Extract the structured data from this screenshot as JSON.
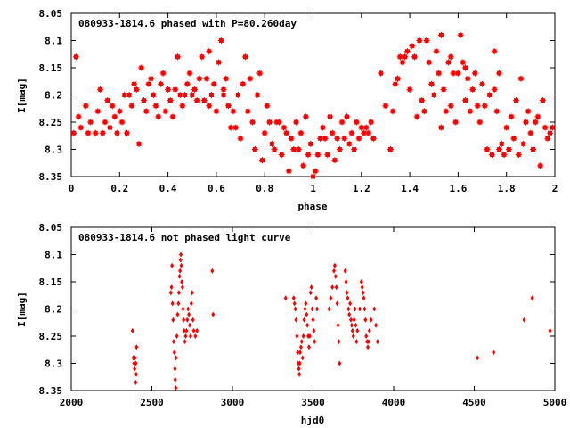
{
  "chart_data": [
    {
      "type": "scatter",
      "title": "080933-1814.6 phased with P=80.260day",
      "xlabel": "phase",
      "ylabel": "I[mag]",
      "xlim": [
        0,
        2
      ],
      "ylim": [
        8.05,
        8.35
      ],
      "y_inverted": true,
      "grid": false,
      "xticks": [
        "0",
        "0.2",
        "0.4",
        "0.6",
        "0.8",
        "1",
        "1.2",
        "1.4",
        "1.6",
        "1.8",
        "2"
      ],
      "yticks": [
        "8.05",
        "8.1",
        "8.15",
        "8.2",
        "8.25",
        "8.3",
        "8.35"
      ],
      "marker_color": "#ff0000",
      "marker": "plus-square",
      "points": [
        [
          0.01,
          8.27
        ],
        [
          0.02,
          8.13
        ],
        [
          0.03,
          8.24
        ],
        [
          0.04,
          8.26
        ],
        [
          0.06,
          8.22
        ],
        [
          0.07,
          8.27
        ],
        [
          0.08,
          8.25
        ],
        [
          0.1,
          8.27
        ],
        [
          0.11,
          8.23
        ],
        [
          0.12,
          8.19
        ],
        [
          0.13,
          8.27
        ],
        [
          0.14,
          8.25
        ],
        [
          0.15,
          8.21
        ],
        [
          0.16,
          8.26
        ],
        [
          0.17,
          8.22
        ],
        [
          0.18,
          8.24
        ],
        [
          0.19,
          8.27
        ],
        [
          0.2,
          8.23
        ],
        [
          0.21,
          8.25
        ],
        [
          0.22,
          8.2
        ],
        [
          0.23,
          8.27
        ],
        [
          0.24,
          8.2
        ],
        [
          0.25,
          8.22
        ],
        [
          0.26,
          8.18
        ],
        [
          0.27,
          8.19
        ],
        [
          0.28,
          8.29
        ],
        [
          0.29,
          8.15
        ],
        [
          0.3,
          8.21
        ],
        [
          0.31,
          8.23
        ],
        [
          0.32,
          8.18
        ],
        [
          0.33,
          8.17
        ],
        [
          0.34,
          8.2
        ],
        [
          0.35,
          8.22
        ],
        [
          0.36,
          8.24
        ],
        [
          0.37,
          8.18
        ],
        [
          0.38,
          8.16
        ],
        [
          0.39,
          8.23
        ],
        [
          0.4,
          8.19
        ],
        [
          0.41,
          8.21
        ],
        [
          0.42,
          8.24
        ],
        [
          0.43,
          8.19
        ],
        [
          0.44,
          8.13
        ],
        [
          0.45,
          8.2
        ],
        [
          0.46,
          8.22
        ],
        [
          0.47,
          8.2
        ],
        [
          0.48,
          8.18
        ],
        [
          0.49,
          8.16
        ],
        [
          0.5,
          8.2
        ],
        [
          0.51,
          8.19
        ],
        [
          0.52,
          8.21
        ],
        [
          0.53,
          8.17
        ],
        [
          0.54,
          8.13
        ],
        [
          0.55,
          8.21
        ],
        [
          0.56,
          8.17
        ],
        [
          0.57,
          8.22
        ],
        [
          0.58,
          8.2
        ],
        [
          0.59,
          8.18
        ],
        [
          0.6,
          8.23
        ],
        [
          0.61,
          8.14
        ],
        [
          0.62,
          8.1
        ],
        [
          0.63,
          8.19
        ],
        [
          0.64,
          8.17
        ],
        [
          0.65,
          8.22
        ],
        [
          0.66,
          8.26
        ],
        [
          0.67,
          8.23
        ],
        [
          0.68,
          8.26
        ],
        [
          0.69,
          8.2
        ],
        [
          0.7,
          8.28
        ],
        [
          0.71,
          8.18
        ],
        [
          0.72,
          8.13
        ],
        [
          0.73,
          8.23
        ],
        [
          0.74,
          8.17
        ],
        [
          0.75,
          8.25
        ],
        [
          0.76,
          8.3
        ],
        [
          0.77,
          8.2
        ],
        [
          0.78,
          8.16
        ],
        [
          0.79,
          8.32
        ],
        [
          0.8,
          8.27
        ],
        [
          0.81,
          8.22
        ],
        [
          0.82,
          8.25
        ],
        [
          0.83,
          8.29
        ],
        [
          0.84,
          8.3
        ],
        [
          0.85,
          8.25
        ],
        [
          0.86,
          8.25
        ],
        [
          0.87,
          8.31
        ],
        [
          0.88,
          8.26
        ],
        [
          0.89,
          8.27
        ],
        [
          0.9,
          8.34
        ],
        [
          0.91,
          8.28
        ],
        [
          0.92,
          8.3
        ],
        [
          0.93,
          8.25
        ],
        [
          0.94,
          8.3
        ],
        [
          0.95,
          8.27
        ],
        [
          0.96,
          8.33
        ],
        [
          0.97,
          8.24
        ],
        [
          0.98,
          8.31
        ],
        [
          0.99,
          8.29
        ],
        [
          1.0,
          8.35
        ],
        [
          1.01,
          8.34
        ],
        [
          1.02,
          8.31
        ],
        [
          1.03,
          8.28
        ],
        [
          1.04,
          8.26
        ],
        [
          1.05,
          8.28
        ],
        [
          1.06,
          8.31
        ],
        [
          1.07,
          8.24
        ],
        [
          1.08,
          8.27
        ],
        [
          1.09,
          8.32
        ],
        [
          1.1,
          8.28
        ],
        [
          1.11,
          8.3
        ],
        [
          1.12,
          8.25
        ],
        [
          1.13,
          8.28
        ],
        [
          1.14,
          8.24
        ],
        [
          1.15,
          8.29
        ],
        [
          1.16,
          8.27
        ],
        [
          1.17,
          8.3
        ],
        [
          1.18,
          8.25
        ],
        [
          1.19,
          8.28
        ],
        [
          1.2,
          8.26
        ],
        [
          1.21,
          8.27
        ],
        [
          1.22,
          8.26
        ],
        [
          1.23,
          8.27
        ],
        [
          1.24,
          8.25
        ],
        [
          1.25,
          8.28
        ],
        [
          1.28,
          8.16
        ],
        [
          1.3,
          8.22
        ],
        [
          1.32,
          8.3
        ],
        [
          1.33,
          8.23
        ],
        [
          1.34,
          8.18
        ],
        [
          1.35,
          8.17
        ],
        [
          1.36,
          8.13
        ],
        [
          1.37,
          8.14
        ],
        [
          1.38,
          8.13
        ],
        [
          1.39,
          8.12
        ],
        [
          1.4,
          8.19
        ],
        [
          1.41,
          8.11
        ],
        [
          1.42,
          8.13
        ],
        [
          1.43,
          8.24
        ],
        [
          1.44,
          8.1
        ],
        [
          1.45,
          8.21
        ],
        [
          1.46,
          8.23
        ],
        [
          1.47,
          8.1
        ],
        [
          1.48,
          8.14
        ],
        [
          1.49,
          8.18
        ],
        [
          1.5,
          8.2
        ],
        [
          1.51,
          8.12
        ],
        [
          1.52,
          8.16
        ],
        [
          1.53,
          8.26
        ],
        [
          1.54,
          8.19
        ],
        [
          1.55,
          8.23
        ],
        [
          1.56,
          8.14
        ],
        [
          1.57,
          8.22
        ],
        [
          1.58,
          8.16
        ],
        [
          1.59,
          8.25
        ],
        [
          1.6,
          8.16
        ],
        [
          1.61,
          8.09
        ],
        [
          1.62,
          8.14
        ],
        [
          1.63,
          8.21
        ],
        [
          1.64,
          8.17
        ],
        [
          1.65,
          8.23
        ],
        [
          1.66,
          8.19
        ],
        [
          1.67,
          8.16
        ],
        [
          1.68,
          8.22
        ],
        [
          1.69,
          8.25
        ],
        [
          1.7,
          8.18
        ],
        [
          1.71,
          8.22
        ],
        [
          1.72,
          8.3
        ],
        [
          1.73,
          8.2
        ],
        [
          1.74,
          8.31
        ],
        [
          1.75,
          8.19
        ],
        [
          1.76,
          8.23
        ],
        [
          1.77,
          8.3
        ],
        [
          1.78,
          8.29
        ],
        [
          1.79,
          8.31
        ],
        [
          1.8,
          8.26
        ],
        [
          1.81,
          8.3
        ],
        [
          1.82,
          8.24
        ],
        [
          1.83,
          8.28
        ],
        [
          1.84,
          8.21
        ],
        [
          1.85,
          8.31
        ],
        [
          1.86,
          8.17
        ],
        [
          1.87,
          8.29
        ],
        [
          1.88,
          8.25
        ],
        [
          1.89,
          8.23
        ],
        [
          1.9,
          8.27
        ],
        [
          1.91,
          8.3
        ],
        [
          1.92,
          8.25
        ],
        [
          1.93,
          8.24
        ],
        [
          1.94,
          8.33
        ],
        [
          1.95,
          8.21
        ],
        [
          1.96,
          8.26
        ],
        [
          1.97,
          8.28
        ],
        [
          1.98,
          8.27
        ],
        [
          1.99,
          8.26
        ],
        [
          1.75,
          8.12
        ],
        [
          1.77,
          8.16
        ],
        [
          1.53,
          8.09
        ],
        [
          1.57,
          8.13
        ],
        [
          1.63,
          8.15
        ],
        [
          0.57,
          8.12
        ],
        [
          0.63,
          8.2
        ]
      ]
    },
    {
      "type": "scatter",
      "title": "080933-1814.6 not phased light curve",
      "xlabel": "hjd0",
      "ylabel": "I[mag]",
      "xlim": [
        2000,
        5000
      ],
      "ylim": [
        8.05,
        8.35
      ],
      "y_inverted": true,
      "grid": false,
      "xticks": [
        "2000",
        "2500",
        "3000",
        "3500",
        "4000",
        "4500",
        "5000"
      ],
      "yticks": [
        "8.05",
        "8.1",
        "8.15",
        "8.2",
        "8.25",
        "8.3",
        "8.35"
      ],
      "marker_color": "#ff0000",
      "marker": "diamond",
      "points": [
        [
          2380,
          8.24
        ],
        [
          2385,
          8.29
        ],
        [
          2390,
          8.3
        ],
        [
          2393,
          8.31
        ],
        [
          2396,
          8.29
        ],
        [
          2400,
          8.3
        ],
        [
          2403,
          8.32
        ],
        [
          2405,
          8.27
        ],
        [
          2400,
          8.335
        ],
        [
          2618,
          8.17
        ],
        [
          2622,
          8.16
        ],
        [
          2625,
          8.12
        ],
        [
          2628,
          8.19
        ],
        [
          2632,
          8.22
        ],
        [
          2635,
          8.26
        ],
        [
          2640,
          8.28
        ],
        [
          2643,
          8.31
        ],
        [
          2645,
          8.33
        ],
        [
          2648,
          8.345
        ],
        [
          2650,
          8.29
        ],
        [
          2655,
          8.25
        ],
        [
          2660,
          8.21
        ],
        [
          2665,
          8.19
        ],
        [
          2668,
          8.17
        ],
        [
          2672,
          8.14
        ],
        [
          2675,
          8.13
        ],
        [
          2678,
          8.11
        ],
        [
          2680,
          8.1
        ],
        [
          2683,
          8.12
        ],
        [
          2686,
          8.15
        ],
        [
          2690,
          8.16
        ],
        [
          2693,
          8.2
        ],
        [
          2697,
          8.22
        ],
        [
          2700,
          8.24
        ],
        [
          2705,
          8.26
        ],
        [
          2710,
          8.25
        ],
        [
          2715,
          8.24
        ],
        [
          2720,
          8.22
        ],
        [
          2725,
          8.2
        ],
        [
          2730,
          8.21
        ],
        [
          2735,
          8.23
        ],
        [
          2740,
          8.25
        ],
        [
          2745,
          8.19
        ],
        [
          2750,
          8.17
        ],
        [
          2755,
          8.22
        ],
        [
          2760,
          8.24
        ],
        [
          2770,
          8.25
        ],
        [
          2780,
          8.24
        ],
        [
          2875,
          8.13
        ],
        [
          2880,
          8.21
        ],
        [
          3330,
          8.18
        ],
        [
          3380,
          8.18
        ],
        [
          3385,
          8.19
        ],
        [
          3390,
          8.2
        ],
        [
          3395,
          8.22
        ],
        [
          3400,
          8.25
        ],
        [
          3405,
          8.28
        ],
        [
          3408,
          8.3
        ],
        [
          3412,
          8.31
        ],
        [
          3415,
          8.32
        ],
        [
          3418,
          8.3
        ],
        [
          3420,
          8.28
        ],
        [
          3425,
          8.27
        ],
        [
          3430,
          8.26
        ],
        [
          3435,
          8.29
        ],
        [
          3440,
          8.25
        ],
        [
          3445,
          8.22
        ],
        [
          3450,
          8.2
        ],
        [
          3455,
          8.19
        ],
        [
          3460,
          8.21
        ],
        [
          3465,
          8.23
        ],
        [
          3470,
          8.25
        ],
        [
          3475,
          8.27
        ],
        [
          3480,
          8.25
        ],
        [
          3485,
          8.17
        ],
        [
          3490,
          8.16
        ],
        [
          3495,
          8.2
        ],
        [
          3500,
          8.22
        ],
        [
          3505,
          8.24
        ],
        [
          3510,
          8.26
        ],
        [
          3520,
          8.18
        ],
        [
          3525,
          8.2
        ],
        [
          3600,
          8.2
        ],
        [
          3610,
          8.18
        ],
        [
          3620,
          8.16
        ],
        [
          3630,
          8.13
        ],
        [
          3635,
          8.12
        ],
        [
          3640,
          8.14
        ],
        [
          3645,
          8.16
        ],
        [
          3650,
          8.19
        ],
        [
          3655,
          8.23
        ],
        [
          3660,
          8.26
        ],
        [
          3665,
          8.3
        ],
        [
          3700,
          8.13
        ],
        [
          3705,
          8.15
        ],
        [
          3710,
          8.17
        ],
        [
          3715,
          8.18
        ],
        [
          3720,
          8.2
        ],
        [
          3725,
          8.21
        ],
        [
          3730,
          8.19
        ],
        [
          3735,
          8.22
        ],
        [
          3740,
          8.23
        ],
        [
          3745,
          8.24
        ],
        [
          3750,
          8.25
        ],
        [
          3755,
          8.22
        ],
        [
          3760,
          8.2
        ],
        [
          3765,
          8.23
        ],
        [
          3770,
          8.26
        ],
        [
          3775,
          8.24
        ],
        [
          3790,
          8.2
        ],
        [
          3800,
          8.15
        ],
        [
          3805,
          8.16
        ],
        [
          3810,
          8.17
        ],
        [
          3815,
          8.18
        ],
        [
          3820,
          8.2
        ],
        [
          3825,
          8.22
        ],
        [
          3830,
          8.25
        ],
        [
          3835,
          8.26
        ],
        [
          3840,
          8.27
        ],
        [
          3845,
          8.26
        ],
        [
          3850,
          8.24
        ],
        [
          3860,
          8.22
        ],
        [
          3880,
          8.2
        ],
        [
          3890,
          8.23
        ],
        [
          3900,
          8.26
        ],
        [
          4520,
          8.29
        ],
        [
          4620,
          8.28
        ],
        [
          4810,
          8.22
        ],
        [
          4860,
          8.18
        ],
        [
          4970,
          8.24
        ]
      ]
    }
  ]
}
